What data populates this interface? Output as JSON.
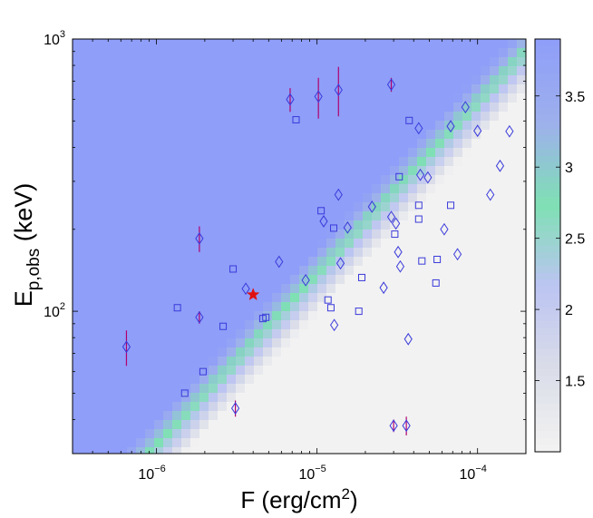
{
  "chart_data": {
    "type": "scatter",
    "title": "",
    "xlabel": "F (erg/cm",
    "xlabel_sup": "2",
    "xlabel_end": ")",
    "ylabel_main": "E",
    "ylabel_sub": "p,obs",
    "ylabel_unit": " (keV)",
    "x_scale": "log",
    "y_scale": "log",
    "xlim": [
      3e-07,
      0.0002
    ],
    "ylim": [
      30,
      1000
    ],
    "x_ticks": [
      {
        "value": 1e-06,
        "base": "10",
        "exp": "−6"
      },
      {
        "value": 1e-05,
        "base": "10",
        "exp": "−5"
      },
      {
        "value": 0.0001,
        "base": "10",
        "exp": "−4"
      }
    ],
    "y_ticks": [
      {
        "value": 100,
        "base": "10",
        "exp": "2"
      },
      {
        "value": 1000,
        "base": "10",
        "exp": "3"
      }
    ],
    "colorbar": {
      "range": [
        1.0,
        3.9
      ],
      "ticks": [
        "1.5",
        "2",
        "2.5",
        "3",
        "3.5"
      ],
      "tick_values": [
        1.5,
        2,
        2.5,
        3,
        3.5
      ],
      "colors": [
        "#f2f2f2",
        "#d9dce8",
        "#bcc4f2",
        "#7fe0b4",
        "#9eb0ec",
        "#8f9ef8"
      ]
    },
    "background_band": {
      "description": "detectability map",
      "slope": 0.63,
      "center_E_at_F": {
        "F": 1e-05,
        "E": 130
      },
      "max_value": 3.9
    },
    "series": [
      {
        "marker": "diamond",
        "color": "#3a3adb",
        "errorbar_color": "#b0006e",
        "points": [
          {
            "x": 6.5e-07,
            "y": 74,
            "ylo": 63,
            "yhi": 85
          },
          {
            "x": 1.85e-06,
            "y": 185,
            "ylo": 165,
            "yhi": 205
          },
          {
            "x": 1.85e-06,
            "y": 95,
            "ylo": 90,
            "yhi": 100
          },
          {
            "x": 3.1e-06,
            "y": 44,
            "ylo": 41,
            "yhi": 47
          },
          {
            "x": 3.6e-06,
            "y": 121
          },
          {
            "x": 5.8e-06,
            "y": 152
          },
          {
            "x": 6.8e-06,
            "y": 600,
            "ylo": 540,
            "yhi": 660
          },
          {
            "x": 8.5e-06,
            "y": 130
          },
          {
            "x": 1.02e-05,
            "y": 615,
            "ylo": 510,
            "yhi": 720
          },
          {
            "x": 1.1e-05,
            "y": 214
          },
          {
            "x": 1.36e-05,
            "y": 650,
            "ylo": 520,
            "yhi": 790
          },
          {
            "x": 1.36e-05,
            "y": 268
          },
          {
            "x": 1.4e-05,
            "y": 150
          },
          {
            "x": 1.55e-05,
            "y": 203
          },
          {
            "x": 1.28e-05,
            "y": 89
          },
          {
            "x": 2.2e-05,
            "y": 242
          },
          {
            "x": 2.6e-05,
            "y": 122
          },
          {
            "x": 2.9e-05,
            "y": 680,
            "ylo": 640,
            "yhi": 720
          },
          {
            "x": 2.9e-05,
            "y": 222
          },
          {
            "x": 3.1e-05,
            "y": 210
          },
          {
            "x": 3.2e-05,
            "y": 165
          },
          {
            "x": 3.3e-05,
            "y": 146
          },
          {
            "x": 3e-05,
            "y": 38,
            "ylo": 36,
            "yhi": 40
          },
          {
            "x": 3.6e-05,
            "y": 38,
            "ylo": 35,
            "yhi": 41
          },
          {
            "x": 3.7e-05,
            "y": 79
          },
          {
            "x": 4.3e-05,
            "y": 470
          },
          {
            "x": 4.4e-05,
            "y": 317
          },
          {
            "x": 4.9e-05,
            "y": 310
          },
          {
            "x": 6.2e-05,
            "y": 200
          },
          {
            "x": 6.8e-05,
            "y": 478
          },
          {
            "x": 7.5e-05,
            "y": 162
          },
          {
            "x": 8.4e-05,
            "y": 562
          },
          {
            "x": 0.0001,
            "y": 460
          },
          {
            "x": 0.00012,
            "y": 268
          },
          {
            "x": 0.000138,
            "y": 342
          },
          {
            "x": 0.000158,
            "y": 458
          }
        ]
      },
      {
        "marker": "square",
        "color": "#3a3adb",
        "points": [
          {
            "x": 1.35e-06,
            "y": 103
          },
          {
            "x": 1.95e-06,
            "y": 60
          },
          {
            "x": 1.5e-06,
            "y": 50
          },
          {
            "x": 2.6e-06,
            "y": 88
          },
          {
            "x": 3e-06,
            "y": 143
          },
          {
            "x": 4.6e-06,
            "y": 94
          },
          {
            "x": 4.8e-06,
            "y": 95
          },
          {
            "x": 7.4e-06,
            "y": 505
          },
          {
            "x": 1.06e-05,
            "y": 234
          },
          {
            "x": 1.17e-05,
            "y": 110
          },
          {
            "x": 1.22e-05,
            "y": 103
          },
          {
            "x": 1.27e-05,
            "y": 202
          },
          {
            "x": 1.9e-05,
            "y": 133
          },
          {
            "x": 1.82e-05,
            "y": 100
          },
          {
            "x": 3.05e-05,
            "y": 192
          },
          {
            "x": 3.25e-05,
            "y": 312
          },
          {
            "x": 3.75e-05,
            "y": 502
          },
          {
            "x": 4.3e-05,
            "y": 245
          },
          {
            "x": 4.3e-05,
            "y": 218
          },
          {
            "x": 4.5e-05,
            "y": 153
          },
          {
            "x": 5.5e-05,
            "y": 127
          },
          {
            "x": 5.6e-05,
            "y": 155
          },
          {
            "x": 6.8e-05,
            "y": 245
          }
        ]
      },
      {
        "marker": "star",
        "color": "#e01010",
        "points": [
          {
            "x": 4e-06,
            "y": 115
          }
        ]
      }
    ]
  }
}
